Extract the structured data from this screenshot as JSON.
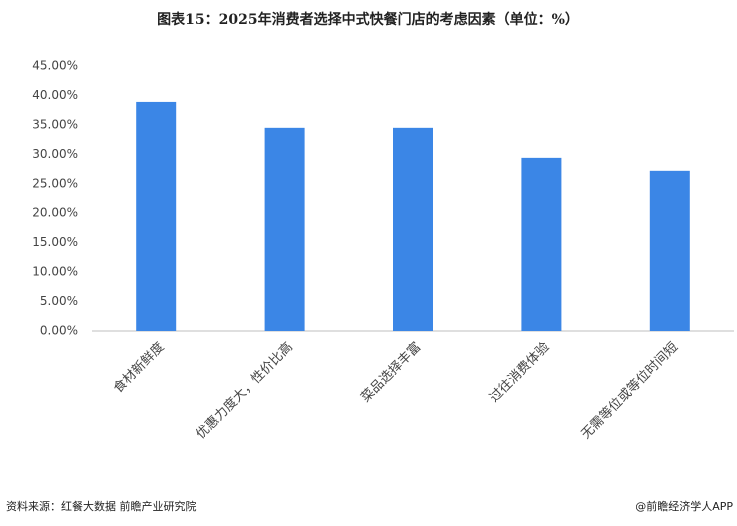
{
  "chart_data": {
    "type": "bar",
    "title": "图表15：2025年消费者选择中式快餐门店的考虑因素（单位：%）",
    "categories": [
      "食材新鲜度",
      "优惠力度大，性价比高",
      "菜品选择丰富",
      "过往消费体验",
      "无需等位或等位时间短"
    ],
    "values": [
      38.9,
      34.5,
      34.5,
      29.4,
      27.2
    ],
    "color": "#3b86e6",
    "ylim": [
      0,
      45
    ],
    "yticks": [
      {
        "value": 0,
        "label": "0.00%"
      },
      {
        "value": 5,
        "label": "5.00%"
      },
      {
        "value": 10,
        "label": "10.00%"
      },
      {
        "value": 15,
        "label": "15.00%"
      },
      {
        "value": 20,
        "label": "20.00%"
      },
      {
        "value": 25,
        "label": "25.00%"
      },
      {
        "value": 30,
        "label": "30.00%"
      },
      {
        "value": 35,
        "label": "35.00%"
      },
      {
        "value": 40,
        "label": "40.00%"
      },
      {
        "value": 45,
        "label": "45.00%"
      }
    ],
    "grid": false,
    "source": "资料来源：红餐大数据 前瞻产业研究院",
    "credit": "@前瞻经济学人APP"
  }
}
